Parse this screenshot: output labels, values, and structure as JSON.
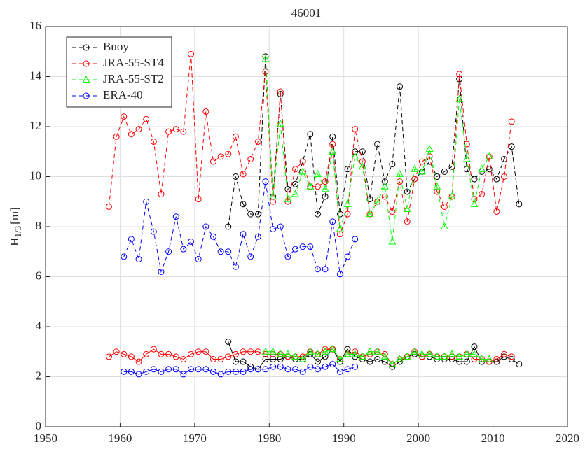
{
  "chart_data": {
    "type": "line",
    "title": "46001",
    "ylabel": {
      "main": "H",
      "sub": "1/3",
      "unit": "[m]"
    },
    "xlim": [
      1950,
      2020
    ],
    "xticks": [
      1950,
      1960,
      1970,
      1980,
      1990,
      2000,
      2010,
      2020
    ],
    "ylim": [
      0,
      16
    ],
    "yticks": [
      0,
      2,
      4,
      6,
      8,
      10,
      12,
      14,
      16
    ],
    "grid": true,
    "legend": "upper-left",
    "series": [
      {
        "name": "Buoy",
        "color": "#000000",
        "marker": "circle",
        "x": [
          1974.5,
          1975.5,
          1976.5,
          1977.5,
          1978.5,
          1979.5,
          1980.5,
          1981.5,
          1982.5,
          1983.5,
          1984.5,
          1985.5,
          1986.5,
          1987.5,
          1988.5,
          1989.5,
          1990.5,
          1991.5,
          1992.5,
          1993.5,
          1994.5,
          1995.5,
          1996.5,
          1997.5,
          1998.5,
          1999.5,
          2000.5,
          2001.5,
          2002.5,
          2003.5,
          2004.5,
          2005.5,
          2006.5,
          2007.5,
          2008.5,
          2009.5,
          2010.5,
          2011.5,
          2012.5,
          2013.5
        ],
        "upper": [
          8.0,
          10.0,
          8.9,
          8.5,
          8.5,
          14.8,
          9.2,
          13.3,
          9.5,
          9.7,
          10.6,
          11.7,
          8.5,
          9.2,
          11.6,
          8.5,
          10.3,
          11.0,
          11.0,
          9.1,
          11.3,
          9.8,
          10.5,
          13.6,
          9.4,
          9.9,
          10.2,
          10.6,
          10.0,
          10.2,
          10.4,
          13.9,
          10.3,
          9.9,
          10.2,
          10.3,
          9.9,
          10.7,
          11.2,
          8.9
        ],
        "lower": [
          3.4,
          2.6,
          2.6,
          2.4,
          2.3,
          2.7,
          2.7,
          2.7,
          2.8,
          2.7,
          2.7,
          2.9,
          2.6,
          2.8,
          3.1,
          2.6,
          3.1,
          2.8,
          2.7,
          2.6,
          2.7,
          2.6,
          2.4,
          2.6,
          2.8,
          2.9,
          2.8,
          2.8,
          2.7,
          2.7,
          2.7,
          2.6,
          2.6,
          3.2,
          2.6,
          2.6,
          2.6,
          2.8,
          2.7,
          2.5
        ]
      },
      {
        "name": "JRA-55-ST4",
        "color": "#ff0000",
        "marker": "circle",
        "x": [
          1958.5,
          1959.5,
          1960.5,
          1961.5,
          1962.5,
          1963.5,
          1964.5,
          1965.5,
          1966.5,
          1967.5,
          1968.5,
          1969.5,
          1970.5,
          1971.5,
          1972.5,
          1973.5,
          1974.5,
          1975.5,
          1976.5,
          1977.5,
          1978.5,
          1979.5,
          1980.5,
          1981.5,
          1982.5,
          1983.5,
          1984.5,
          1985.5,
          1986.5,
          1987.5,
          1988.5,
          1989.5,
          1990.5,
          1991.5,
          1992.5,
          1993.5,
          1994.5,
          1995.5,
          1996.5,
          1997.5,
          1998.5,
          1999.5,
          2000.5,
          2001.5,
          2002.5,
          2003.5,
          2004.5,
          2005.5,
          2006.5,
          2007.5,
          2008.5,
          2009.5,
          2010.5,
          2011.5,
          2012.5
        ],
        "upper": [
          8.8,
          11.6,
          12.4,
          11.7,
          11.9,
          12.3,
          11.4,
          9.3,
          11.8,
          11.9,
          11.8,
          14.9,
          9.1,
          12.6,
          10.6,
          10.8,
          10.9,
          11.6,
          10.1,
          10.7,
          11.4,
          14.2,
          9.0,
          13.4,
          9.0,
          10.3,
          10.6,
          9.6,
          9.6,
          9.8,
          11.3,
          7.7,
          8.5,
          11.9,
          10.6,
          8.5,
          9.0,
          9.2,
          8.6,
          9.8,
          8.2,
          9.9,
          10.6,
          10.8,
          9.4,
          8.8,
          9.2,
          14.1,
          11.3,
          9.1,
          9.3,
          10.8,
          8.6,
          10.0,
          12.2
        ],
        "lower": [
          2.8,
          3.0,
          2.9,
          2.8,
          2.6,
          2.9,
          3.1,
          2.9,
          2.9,
          2.8,
          2.7,
          2.9,
          3.0,
          3.0,
          2.7,
          2.7,
          2.8,
          2.9,
          3.0,
          3.0,
          3.0,
          2.9,
          2.9,
          2.9,
          2.8,
          2.8,
          2.8,
          3.0,
          2.9,
          3.1,
          3.1,
          2.7,
          2.9,
          3.0,
          2.8,
          2.9,
          3.0,
          2.9,
          2.5,
          2.7,
          2.8,
          3.0,
          2.8,
          2.9,
          2.8,
          2.8,
          2.8,
          2.8,
          2.9,
          2.7,
          2.7,
          2.6,
          2.7,
          2.9,
          2.8
        ]
      },
      {
        "name": "JRA-55-ST2",
        "color": "#00ff00",
        "marker": "triangle",
        "x": [
          1979.5,
          1980.5,
          1981.5,
          1982.5,
          1983.5,
          1984.5,
          1985.5,
          1986.5,
          1987.5,
          1988.5,
          1989.5,
          1990.5,
          1991.5,
          1992.5,
          1993.5,
          1994.5,
          1995.5,
          1996.5,
          1997.5,
          1998.5,
          1999.5,
          2000.5,
          2001.5,
          2002.5,
          2003.5,
          2004.5,
          2005.5,
          2006.5,
          2007.5,
          2008.5,
          2009.5
        ],
        "upper": [
          14.7,
          9.2,
          12.1,
          9.1,
          9.3,
          10.2,
          9.6,
          10.1,
          9.5,
          11.0,
          7.9,
          8.9,
          10.8,
          10.4,
          8.5,
          9.0,
          9.6,
          7.4,
          10.1,
          8.7,
          10.3,
          10.2,
          11.1,
          9.6,
          8.0,
          9.2,
          13.1,
          10.7,
          8.9,
          10.3,
          10.8
        ],
        "lower": [
          3.0,
          3.0,
          2.9,
          2.9,
          2.8,
          2.7,
          3.0,
          2.9,
          3.0,
          3.1,
          2.7,
          2.9,
          2.9,
          2.8,
          3.0,
          3.0,
          2.8,
          2.5,
          2.7,
          2.8,
          3.0,
          2.9,
          2.9,
          2.8,
          2.8,
          2.9,
          2.8,
          2.9,
          2.9,
          2.7,
          2.7
        ]
      },
      {
        "name": "ERA-40",
        "color": "#0000ff",
        "marker": "circle",
        "x": [
          1960.5,
          1961.5,
          1962.5,
          1963.5,
          1964.5,
          1965.5,
          1966.5,
          1967.5,
          1968.5,
          1969.5,
          1970.5,
          1971.5,
          1972.5,
          1973.5,
          1974.5,
          1975.5,
          1976.5,
          1977.5,
          1978.5,
          1979.5,
          1980.5,
          1981.5,
          1982.5,
          1983.5,
          1984.5,
          1985.5,
          1986.5,
          1987.5,
          1988.5,
          1989.5,
          1990.5,
          1991.5
        ],
        "upper": [
          6.8,
          7.5,
          6.7,
          9.0,
          7.8,
          6.2,
          7.0,
          8.4,
          7.1,
          7.4,
          6.7,
          8.0,
          7.6,
          7.0,
          7.0,
          6.4,
          7.7,
          6.8,
          7.6,
          9.8,
          7.9,
          8.0,
          6.8,
          7.1,
          7.2,
          7.2,
          6.3,
          6.3,
          8.2,
          6.1,
          6.8,
          7.5
        ],
        "lower": [
          2.2,
          2.2,
          2.1,
          2.2,
          2.3,
          2.2,
          2.3,
          2.3,
          2.1,
          2.3,
          2.3,
          2.3,
          2.2,
          2.1,
          2.2,
          2.2,
          2.2,
          2.3,
          2.3,
          2.3,
          2.4,
          2.4,
          2.3,
          2.3,
          2.2,
          2.4,
          2.3,
          2.4,
          2.5,
          2.2,
          2.3,
          2.4
        ]
      }
    ]
  }
}
